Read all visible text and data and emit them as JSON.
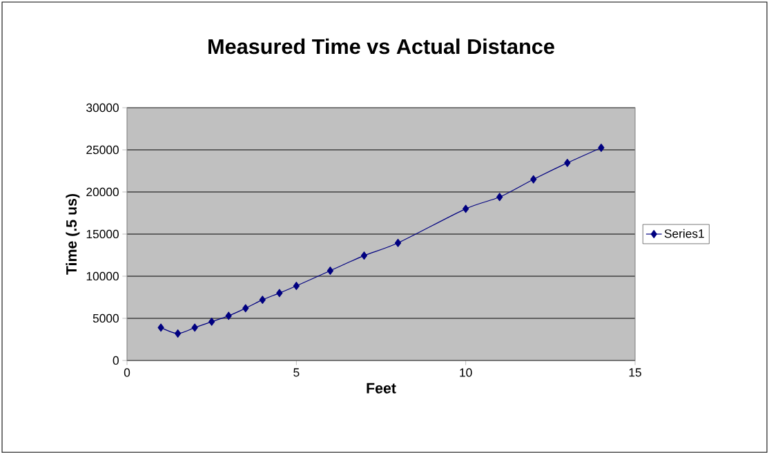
{
  "chart_data": {
    "type": "line",
    "title": "Measured Time vs Actual Distance",
    "xlabel": "Feet",
    "ylabel": "Time (.5 us)",
    "x": [
      1,
      1.5,
      2,
      2.5,
      3,
      3.5,
      4,
      4.5,
      5,
      6,
      7,
      8,
      10,
      11,
      12,
      13,
      14
    ],
    "series": [
      {
        "name": "Series1",
        "color": "#000080",
        "values": [
          3900,
          3200,
          3900,
          4600,
          5300,
          6200,
          7200,
          8000,
          8850,
          10650,
          12450,
          13950,
          18000,
          19400,
          21500,
          23450,
          25250
        ]
      }
    ],
    "xlim": [
      0,
      15
    ],
    "xticks": [
      0,
      5,
      10,
      15
    ],
    "ylim": [
      0,
      30000
    ],
    "yticks": [
      0,
      5000,
      10000,
      15000,
      20000,
      25000,
      30000
    ],
    "grid": "y",
    "legend": "right",
    "marker": "diamond",
    "line_style": "solid"
  }
}
